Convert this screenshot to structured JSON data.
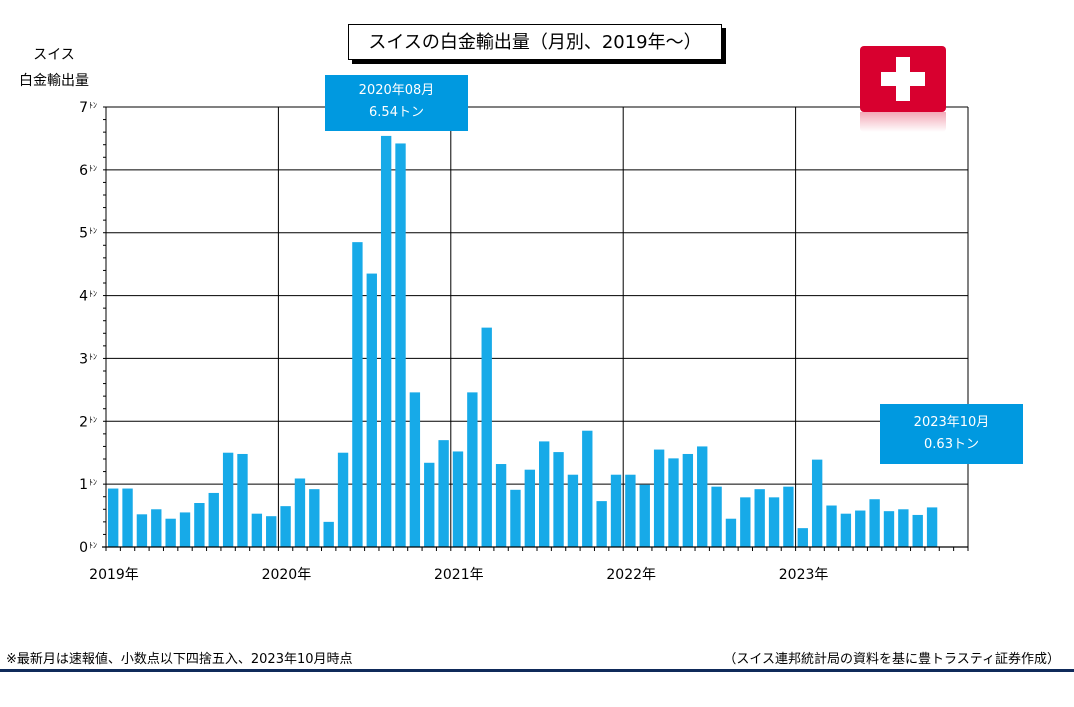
{
  "chart_data": {
    "type": "bar",
    "title": "スイスの白金輸出量（月別、2019年～）",
    "ylabel_line1": "スイス",
    "ylabel_line2": "白金輸出量",
    "ylim": [
      0,
      7
    ],
    "y_ticks": [
      "0",
      "1",
      "2",
      "3",
      "4",
      "5",
      "6",
      "7"
    ],
    "y_tick_unit": "ﾄﾝ",
    "x_tick_labels": [
      "2019年",
      "2020年",
      "2021年",
      "2022年",
      "2023年"
    ],
    "grid": true,
    "bar_color": "#17aae8",
    "categories": [
      "2019-01",
      "2019-02",
      "2019-03",
      "2019-04",
      "2019-05",
      "2019-06",
      "2019-07",
      "2019-08",
      "2019-09",
      "2019-10",
      "2019-11",
      "2019-12",
      "2020-01",
      "2020-02",
      "2020-03",
      "2020-04",
      "2020-05",
      "2020-06",
      "2020-07",
      "2020-08",
      "2020-09",
      "2020-10",
      "2020-11",
      "2020-12",
      "2021-01",
      "2021-02",
      "2021-03",
      "2021-04",
      "2021-05",
      "2021-06",
      "2021-07",
      "2021-08",
      "2021-09",
      "2021-10",
      "2021-11",
      "2021-12",
      "2022-01",
      "2022-02",
      "2022-03",
      "2022-04",
      "2022-05",
      "2022-06",
      "2022-07",
      "2022-08",
      "2022-09",
      "2022-10",
      "2022-11",
      "2022-12",
      "2023-01",
      "2023-02",
      "2023-03",
      "2023-04",
      "2023-05",
      "2023-06",
      "2023-07",
      "2023-08",
      "2023-09",
      "2023-10"
    ],
    "values": [
      0.93,
      0.93,
      0.52,
      0.6,
      0.45,
      0.55,
      0.7,
      0.86,
      1.5,
      1.48,
      0.53,
      0.49,
      0.65,
      1.09,
      0.92,
      0.4,
      1.5,
      4.85,
      4.35,
      6.54,
      6.42,
      2.46,
      1.34,
      1.7,
      1.52,
      2.46,
      3.49,
      1.32,
      0.91,
      1.23,
      1.68,
      1.51,
      1.15,
      1.85,
      0.73,
      1.15,
      1.15,
      0.99,
      1.55,
      1.41,
      1.48,
      1.6,
      0.96,
      0.45,
      0.79,
      0.92,
      0.79,
      0.96,
      0.3,
      1.39,
      0.66,
      0.53,
      0.58,
      0.76,
      0.57,
      0.6,
      0.51,
      0.63
    ],
    "annotations": [
      {
        "line1": "2020年08月",
        "line2": "6.54トン"
      },
      {
        "line1": "2023年10月",
        "line2": "0.63トン"
      }
    ]
  },
  "footer": {
    "note": "※最新月は速報値、小数点以下四捨五入、2023年10月時点",
    "source": "（スイス連邦統計局の資料を基に豊トラスティ証券作成）"
  },
  "flag": {
    "name": "swiss-flag-icon",
    "red": "#d8002f"
  }
}
